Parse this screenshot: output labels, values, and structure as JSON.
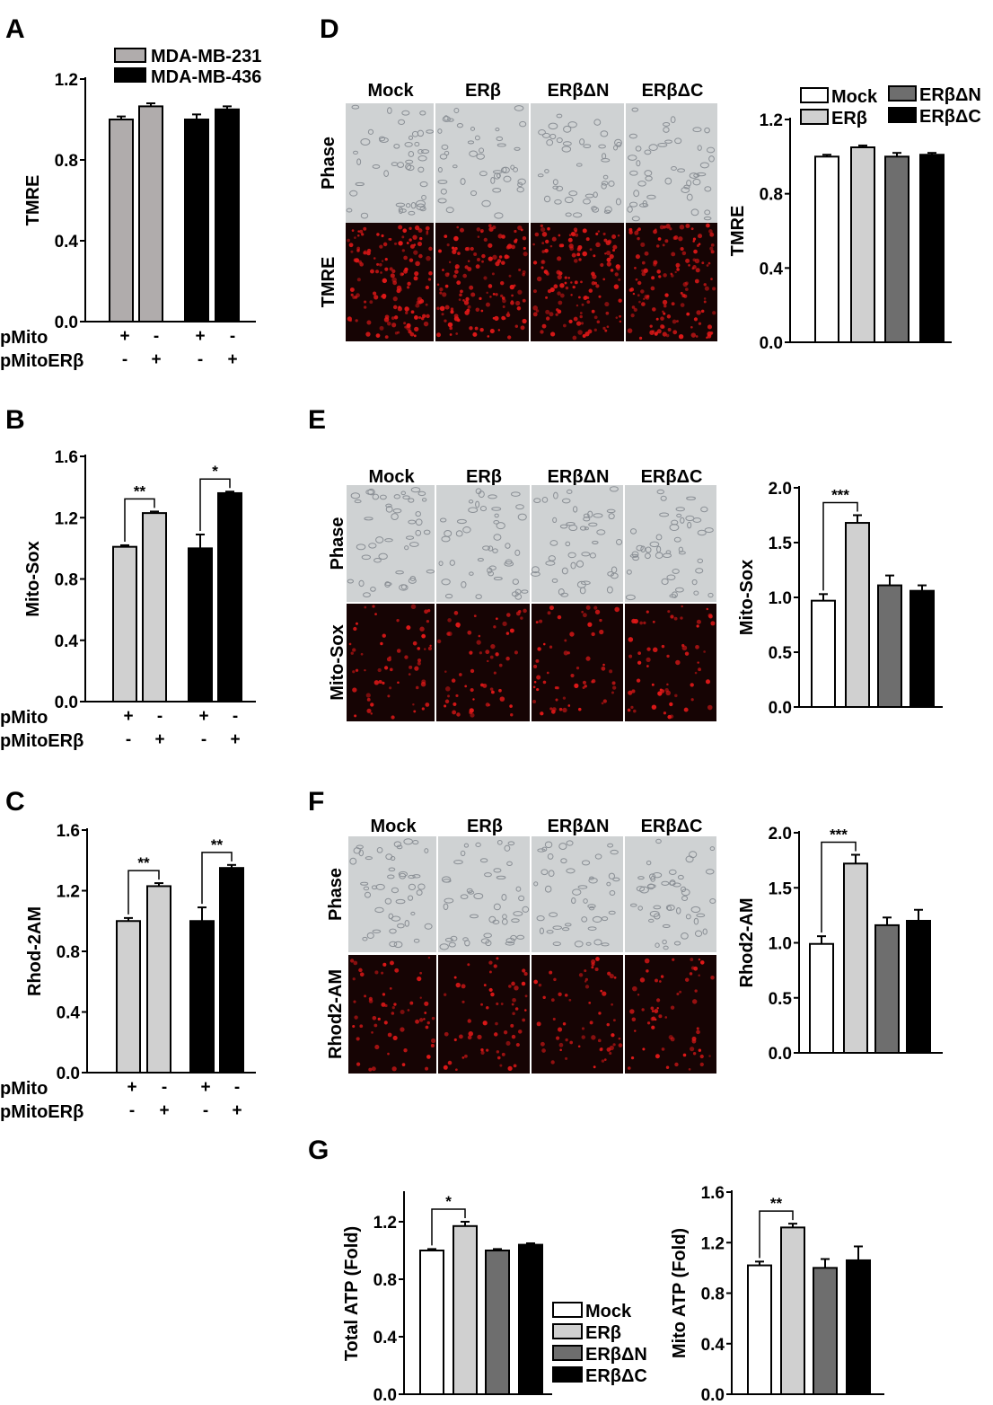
{
  "panel_labels": {
    "A": "A",
    "B": "B",
    "C": "C",
    "D": "D",
    "E": "E",
    "F": "F",
    "G": "G"
  },
  "colors": {
    "mock": "#ffffff",
    "erb": "#d0d0d0",
    "erbdn": "#6e6e6e",
    "erbdc": "#000000",
    "mda231": "#b0acac",
    "mda436": "#000000",
    "image_bg": "#cfd2d3",
    "fluor_bg": "#160404",
    "fluor_dot": "#e01818"
  },
  "image_panels": {
    "D": {
      "columns": [
        "Mock",
        "ERβ",
        "ERβΔN",
        "ERβΔC"
      ],
      "rows": [
        "Phase",
        "TMRE"
      ]
    },
    "E": {
      "columns": [
        "Mock",
        "ERβ",
        "ERβΔN",
        "ERβΔC"
      ],
      "rows": [
        "Phase",
        "Mito-Sox"
      ]
    },
    "F": {
      "columns": [
        "Mock",
        "ERβ",
        "ERβΔN",
        "ERβΔC"
      ],
      "rows": [
        "Phase",
        "Rhod2-AM"
      ]
    }
  },
  "chart_data": [
    {
      "id": "A",
      "type": "bar",
      "ylabel": "TMRE",
      "ylim": [
        0,
        1.2
      ],
      "yticks": [
        "0.0",
        "0.4",
        "0.8",
        "1.2"
      ],
      "legend": [
        "MDA-MB-231",
        "MDA-MB-436"
      ],
      "bars": [
        {
          "value": 1.0,
          "err": 0.015,
          "series": "MDA-MB-231"
        },
        {
          "value": 1.065,
          "err": 0.015,
          "series": "MDA-MB-231"
        },
        {
          "value": 1.0,
          "err": 0.025,
          "series": "MDA-MB-436"
        },
        {
          "value": 1.05,
          "err": 0.015,
          "series": "MDA-MB-436"
        }
      ],
      "row_labels": [
        "pMito",
        "pMitoERβ"
      ],
      "row_signs": [
        [
          "+",
          "-",
          "+",
          "-"
        ],
        [
          "-",
          "+",
          "-",
          "+"
        ]
      ],
      "sig": []
    },
    {
      "id": "B",
      "type": "bar",
      "ylabel": "Mito-Sox",
      "ylim": [
        0,
        1.6
      ],
      "yticks": [
        "0.0",
        "0.4",
        "0.8",
        "1.2",
        "1.6"
      ],
      "bars": [
        {
          "value": 1.01,
          "err": 0.01,
          "color": "erb"
        },
        {
          "value": 1.23,
          "err": 0.01,
          "color": "erb"
        },
        {
          "value": 1.0,
          "err": 0.09,
          "color": "erbdc"
        },
        {
          "value": 1.36,
          "err": 0.01,
          "color": "erbdc"
        }
      ],
      "row_labels": [
        "pMito",
        "pMitoERβ"
      ],
      "row_signs": [
        [
          "+",
          "-",
          "+",
          "-"
        ],
        [
          "-",
          "+",
          "-",
          "+"
        ]
      ],
      "sig": [
        {
          "from": 0,
          "to": 1,
          "label": "**"
        },
        {
          "from": 2,
          "to": 3,
          "label": "*"
        }
      ]
    },
    {
      "id": "C",
      "type": "bar",
      "ylabel": "Rhod-2AM",
      "ylim": [
        0,
        1.6
      ],
      "yticks": [
        "0.0",
        "0.4",
        "0.8",
        "1.2",
        "1.6"
      ],
      "bars": [
        {
          "value": 1.0,
          "err": 0.02,
          "color": "erb"
        },
        {
          "value": 1.23,
          "err": 0.02,
          "color": "erb"
        },
        {
          "value": 1.0,
          "err": 0.09,
          "color": "erbdc"
        },
        {
          "value": 1.35,
          "err": 0.02,
          "color": "erbdc"
        }
      ],
      "row_labels": [
        "pMito",
        "pMitoERβ"
      ],
      "row_signs": [
        [
          "+",
          "-",
          "+",
          "-"
        ],
        [
          "-",
          "+",
          "-",
          "+"
        ]
      ],
      "sig": [
        {
          "from": 0,
          "to": 1,
          "label": "**"
        },
        {
          "from": 2,
          "to": 3,
          "label": "**"
        }
      ]
    },
    {
      "id": "D",
      "type": "bar",
      "ylabel": "TMRE",
      "ylim": [
        0,
        1.2
      ],
      "yticks": [
        "0.0",
        "0.4",
        "0.8",
        "1.2"
      ],
      "legend": [
        "Mock",
        "ERβ",
        "ERβΔN",
        "ERβΔC"
      ],
      "bars": [
        {
          "value": 1.0,
          "err": 0.01,
          "color": "mock"
        },
        {
          "value": 1.05,
          "err": 0.01,
          "color": "erb"
        },
        {
          "value": 1.0,
          "err": 0.02,
          "color": "erbdn"
        },
        {
          "value": 1.01,
          "err": 0.01,
          "color": "erbdc"
        }
      ],
      "sig": []
    },
    {
      "id": "E",
      "type": "bar",
      "ylabel": "Mito-Sox",
      "ylim": [
        0,
        2.0
      ],
      "yticks": [
        "0.0",
        "0.5",
        "1.0",
        "1.5",
        "2.0"
      ],
      "bars": [
        {
          "value": 0.97,
          "err": 0.06,
          "color": "mock"
        },
        {
          "value": 1.68,
          "err": 0.07,
          "color": "erb"
        },
        {
          "value": 1.11,
          "err": 0.09,
          "color": "erbdn"
        },
        {
          "value": 1.06,
          "err": 0.05,
          "color": "erbdc"
        }
      ],
      "sig": [
        {
          "from": 0,
          "to": 1,
          "label": "***"
        }
      ]
    },
    {
      "id": "F",
      "type": "bar",
      "ylabel": "Rhod2-AM",
      "ylim": [
        0,
        2.0
      ],
      "yticks": [
        "0.0",
        "0.5",
        "1.0",
        "1.5",
        "2.0"
      ],
      "bars": [
        {
          "value": 0.99,
          "err": 0.07,
          "color": "mock"
        },
        {
          "value": 1.72,
          "err": 0.08,
          "color": "erb"
        },
        {
          "value": 1.16,
          "err": 0.07,
          "color": "erbdn"
        },
        {
          "value": 1.2,
          "err": 0.1,
          "color": "erbdc"
        }
      ],
      "sig": [
        {
          "from": 0,
          "to": 1,
          "label": "***"
        }
      ]
    },
    {
      "id": "G1",
      "type": "bar",
      "ylabel": "Total ATP (Fold)",
      "ylim": [
        0,
        1.4
      ],
      "yticks": [
        "0.0",
        "0.4",
        "0.8",
        "1.2"
      ],
      "bars": [
        {
          "value": 1.0,
          "err": 0.01,
          "color": "mock"
        },
        {
          "value": 1.17,
          "err": 0.03,
          "color": "erb"
        },
        {
          "value": 1.0,
          "err": 0.01,
          "color": "erbdn"
        },
        {
          "value": 1.04,
          "err": 0.01,
          "color": "erbdc"
        }
      ],
      "legend": [
        "Mock",
        "ERβ",
        "ERβΔN",
        "ERβΔC"
      ],
      "sig": [
        {
          "from": 0,
          "to": 1,
          "label": "*"
        }
      ]
    },
    {
      "id": "G2",
      "type": "bar",
      "ylabel": "Mito ATP (Fold)",
      "ylim": [
        0,
        1.6
      ],
      "yticks": [
        "0.0",
        "0.4",
        "0.8",
        "1.2",
        "1.6"
      ],
      "bars": [
        {
          "value": 1.02,
          "err": 0.03,
          "color": "mock"
        },
        {
          "value": 1.32,
          "err": 0.03,
          "color": "erb"
        },
        {
          "value": 1.0,
          "err": 0.07,
          "color": "erbdn"
        },
        {
          "value": 1.06,
          "err": 0.11,
          "color": "erbdc"
        }
      ],
      "sig": [
        {
          "from": 0,
          "to": 1,
          "label": "**"
        }
      ]
    }
  ]
}
